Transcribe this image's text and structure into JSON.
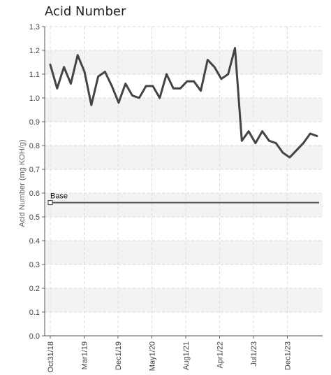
{
  "chart_data": {
    "type": "line",
    "title": "Acid Number",
    "ylabel": "Acid Number (mg KOH/g)",
    "xlabel": "",
    "ylim": [
      0,
      1.3
    ],
    "yticks": [
      "0.0",
      "0.1",
      "0.2",
      "0.3",
      "0.4",
      "0.5",
      "0.6",
      "0.7",
      "0.8",
      "0.9",
      "1.0",
      "1.1",
      "1.2",
      "1.3"
    ],
    "xtick_labels": [
      "Oct31/18",
      "Mar1/19",
      "Dec1/19",
      "May1/20",
      "Aug1/21",
      "Apr1/22",
      "Jul1/23",
      "Dec1/23"
    ],
    "grid": true,
    "series": [
      {
        "values": [
          1.14,
          1.04,
          1.13,
          1.06,
          1.18,
          1.11,
          0.97,
          1.09,
          1.11,
          1.05,
          0.98,
          1.06,
          1.01,
          1.0,
          1.05,
          1.05,
          1.0,
          1.1,
          1.04,
          1.04,
          1.07,
          1.07,
          1.03,
          1.16,
          1.13,
          1.08,
          1.1,
          1.21,
          0.82,
          0.86,
          0.81,
          0.86,
          0.82,
          0.81,
          0.77,
          0.75,
          0.78,
          0.81,
          0.85,
          0.84
        ],
        "color": "#444444"
      }
    ],
    "reference_line": {
      "label": "Base",
      "value": 0.56,
      "color": "#555555"
    }
  }
}
